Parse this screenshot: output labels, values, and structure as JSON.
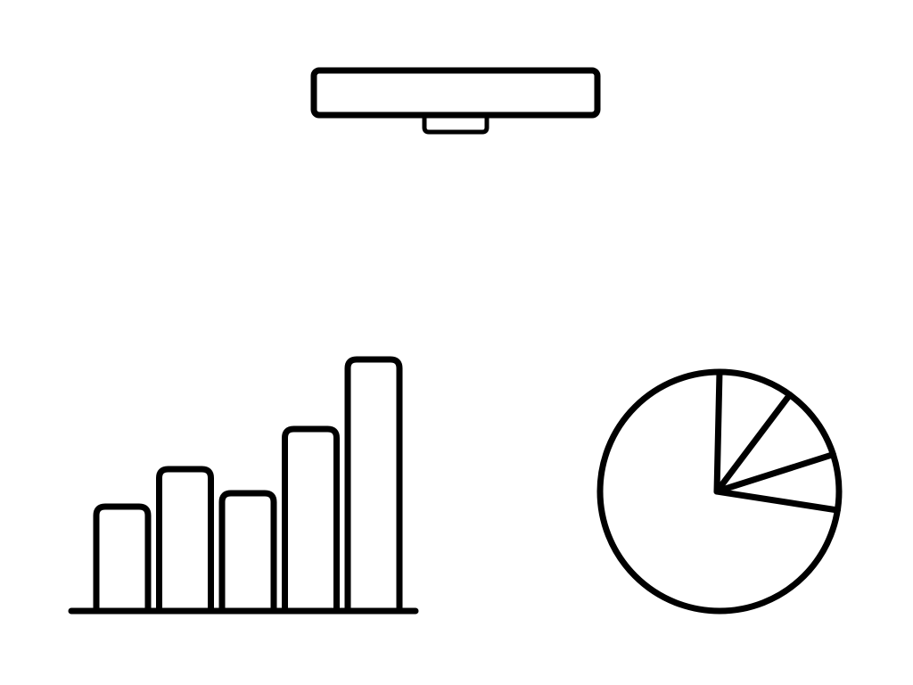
{
  "colors": {
    "background": "#ffffff",
    "stroke": "#000000"
  },
  "icons": {
    "top": "projector-screen-icon",
    "bottom_left": "bar-chart-icon",
    "bottom_right": "pie-chart-icon"
  },
  "chart_data": [
    {
      "type": "bar",
      "categories": [
        "",
        "",
        "",
        "",
        ""
      ],
      "values": [
        3.8,
        5.2,
        4.3,
        6.7,
        9.3
      ],
      "ylim": [
        0,
        10
      ],
      "grid": false
    },
    {
      "type": "pie",
      "values": [
        10,
        10,
        7.5,
        72.5
      ],
      "unit": "percent",
      "start": "top",
      "direction": "clockwise"
    }
  ]
}
